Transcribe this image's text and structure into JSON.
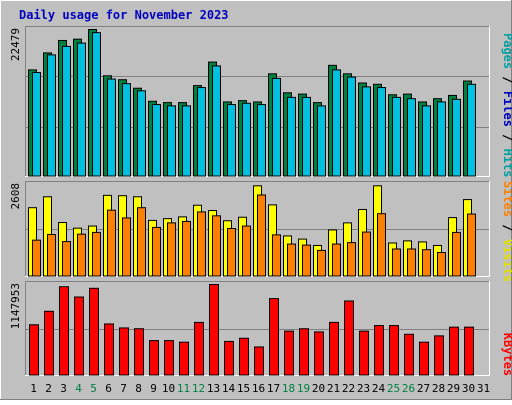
{
  "chart_data": [
    {
      "type": "bar",
      "title": "Daily usage for November 2023",
      "categories": [
        "1",
        "2",
        "3",
        "4",
        "5",
        "6",
        "7",
        "8",
        "9",
        "10",
        "11",
        "12",
        "13",
        "14",
        "15",
        "16",
        "17",
        "18",
        "19",
        "20",
        "21",
        "22",
        "23",
        "24",
        "25",
        "26",
        "27",
        "28",
        "29",
        "30",
        "31"
      ],
      "weekend_days": [
        "4",
        "5",
        "11",
        "12",
        "18",
        "19",
        "25",
        "26"
      ],
      "ymax_label": "22479",
      "ylim": [
        0,
        22479
      ],
      "grid": true,
      "side_labels": [
        {
          "text": "Pages",
          "color": "#00a0a0"
        },
        {
          "text": " / ",
          "color": "#000000"
        },
        {
          "text": "Files",
          "color": "#0000c0"
        },
        {
          "text": " / ",
          "color": "#000000"
        },
        {
          "text": "Hits",
          "color": "#00a0a0"
        }
      ],
      "series": [
        {
          "name": "Hits",
          "color": "#008040",
          "values": [
            16300,
            18900,
            20800,
            21000,
            22479,
            15400,
            14800,
            13500,
            11500,
            11300,
            11300,
            13900,
            17500,
            11400,
            11600,
            11400,
            15700,
            12800,
            12600,
            11300,
            17000,
            15700,
            14300,
            14100,
            12500,
            12600,
            11400,
            11900,
            12400,
            14600,
            0
          ]
        },
        {
          "name": "Files",
          "color": "#00c0e0",
          "values": [
            15900,
            18600,
            19900,
            20400,
            22000,
            14900,
            14200,
            13100,
            11000,
            10800,
            10800,
            13600,
            16900,
            11000,
            11200,
            11000,
            15000,
            12100,
            12100,
            10800,
            16300,
            15200,
            13700,
            13600,
            12100,
            11900,
            10800,
            11400,
            11800,
            14100,
            0
          ]
        }
      ]
    },
    {
      "type": "bar",
      "categories": [
        "1",
        "2",
        "3",
        "4",
        "5",
        "6",
        "7",
        "8",
        "9",
        "10",
        "11",
        "12",
        "13",
        "14",
        "15",
        "16",
        "17",
        "18",
        "19",
        "20",
        "21",
        "22",
        "23",
        "24",
        "25",
        "26",
        "27",
        "28",
        "29",
        "30",
        "31"
      ],
      "ymax_label": "2608",
      "ylim": [
        0,
        2608
      ],
      "grid": true,
      "side_labels": [
        {
          "text": "Sites",
          "color": "#ff8000"
        },
        {
          "text": " / ",
          "color": "#000000"
        },
        {
          "text": "Visits",
          "color": "#e0e000"
        }
      ],
      "series": [
        {
          "name": "Visits",
          "color": "#ffff00",
          "values": [
            1950,
            2260,
            1530,
            1370,
            1430,
            2300,
            2290,
            2260,
            1590,
            1640,
            1690,
            2020,
            1870,
            1580,
            1680,
            2570,
            2030,
            1150,
            1060,
            880,
            1320,
            1520,
            1900,
            2570,
            950,
            1010,
            980,
            880,
            1670,
            2180,
            0
          ]
        },
        {
          "name": "Sites",
          "color": "#ff8000",
          "values": [
            1030,
            1190,
            990,
            1200,
            1250,
            1880,
            1660,
            1950,
            1390,
            1520,
            1560,
            1830,
            1720,
            1360,
            1430,
            2310,
            1180,
            920,
            890,
            740,
            920,
            960,
            1260,
            1780,
            780,
            780,
            760,
            680,
            1250,
            1770,
            0
          ]
        }
      ]
    },
    {
      "type": "bar",
      "categories": [
        "1",
        "2",
        "3",
        "4",
        "5",
        "6",
        "7",
        "8",
        "9",
        "10",
        "11",
        "12",
        "13",
        "14",
        "15",
        "16",
        "17",
        "18",
        "19",
        "20",
        "21",
        "22",
        "23",
        "24",
        "25",
        "26",
        "27",
        "28",
        "29",
        "30",
        "31"
      ],
      "ymax_label": "1147953",
      "ylim": [
        0,
        1147953
      ],
      "grid": true,
      "side_labels": [
        {
          "text": "KBytes",
          "color": "#ff0000"
        }
      ],
      "series": [
        {
          "name": "KBytes",
          "color": "#ff0000",
          "values": [
            640000,
            810000,
            1120000,
            990000,
            1100000,
            650000,
            600000,
            590000,
            440000,
            440000,
            420000,
            670000,
            1147953,
            430000,
            470000,
            360000,
            970000,
            560000,
            590000,
            550000,
            670000,
            940000,
            560000,
            630000,
            630000,
            520000,
            420000,
            500000,
            610000,
            610000,
            0
          ]
        }
      ]
    }
  ]
}
